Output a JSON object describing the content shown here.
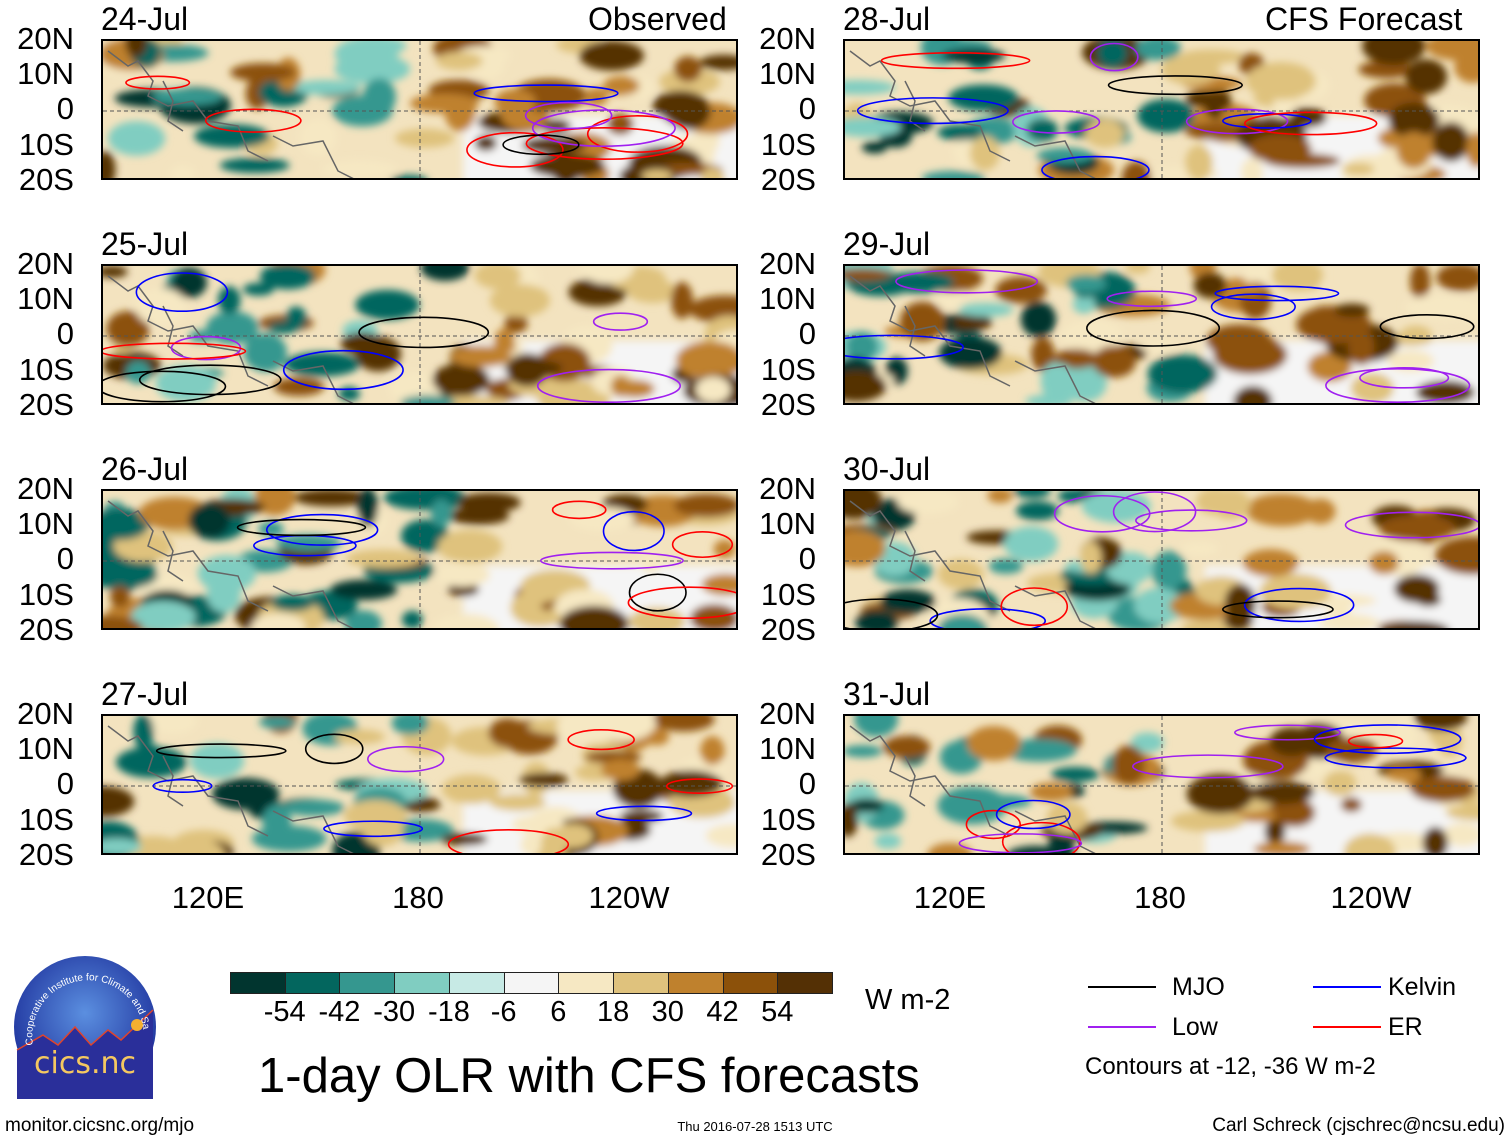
{
  "header": {
    "left_label": "Observed",
    "right_label": "CFS Forecast"
  },
  "panels": {
    "observed": [
      "24-Jul",
      "25-Jul",
      "26-Jul",
      "27-Jul"
    ],
    "forecast": [
      "28-Jul",
      "29-Jul",
      "30-Jul",
      "31-Jul"
    ]
  },
  "lat_ticks": [
    "20N",
    "10N",
    "0",
    "10S",
    "20S"
  ],
  "lon_ticks": [
    "120E",
    "180",
    "120W"
  ],
  "colorbar": {
    "colors": [
      "#01352f",
      "#03665e",
      "#35978f",
      "#80cdc1",
      "#c7eae5",
      "#f5f5f5",
      "#f6e8c3",
      "#dfc27d",
      "#bf812d",
      "#8c510a",
      "#543005"
    ],
    "labels": [
      "-54",
      "-42",
      "-30",
      "-18",
      "-6",
      "6",
      "18",
      "30",
      "42",
      "54"
    ],
    "units": "W m-2"
  },
  "title": "1-day OLR with CFS forecasts",
  "timestamp": "Thu 2016-07-28 1513 UTC",
  "legend": {
    "items": [
      {
        "label": "MJO",
        "color": "#000000"
      },
      {
        "label": "Kelvin",
        "color": "#0000ff"
      },
      {
        "label": "Low",
        "color": "#a020f0"
      },
      {
        "label": "ER",
        "color": "#ff0000"
      }
    ],
    "note": "Contours at -12, -36 W m-2"
  },
  "logo": {
    "text": "cics.nc",
    "ring_text": "Cooperative Institute for Climate and Satellites"
  },
  "footer": {
    "url": "monitor.cicsnc.org/mjo",
    "credit": "Carl Schreck (cjschrec@ncsu.edu)"
  }
}
